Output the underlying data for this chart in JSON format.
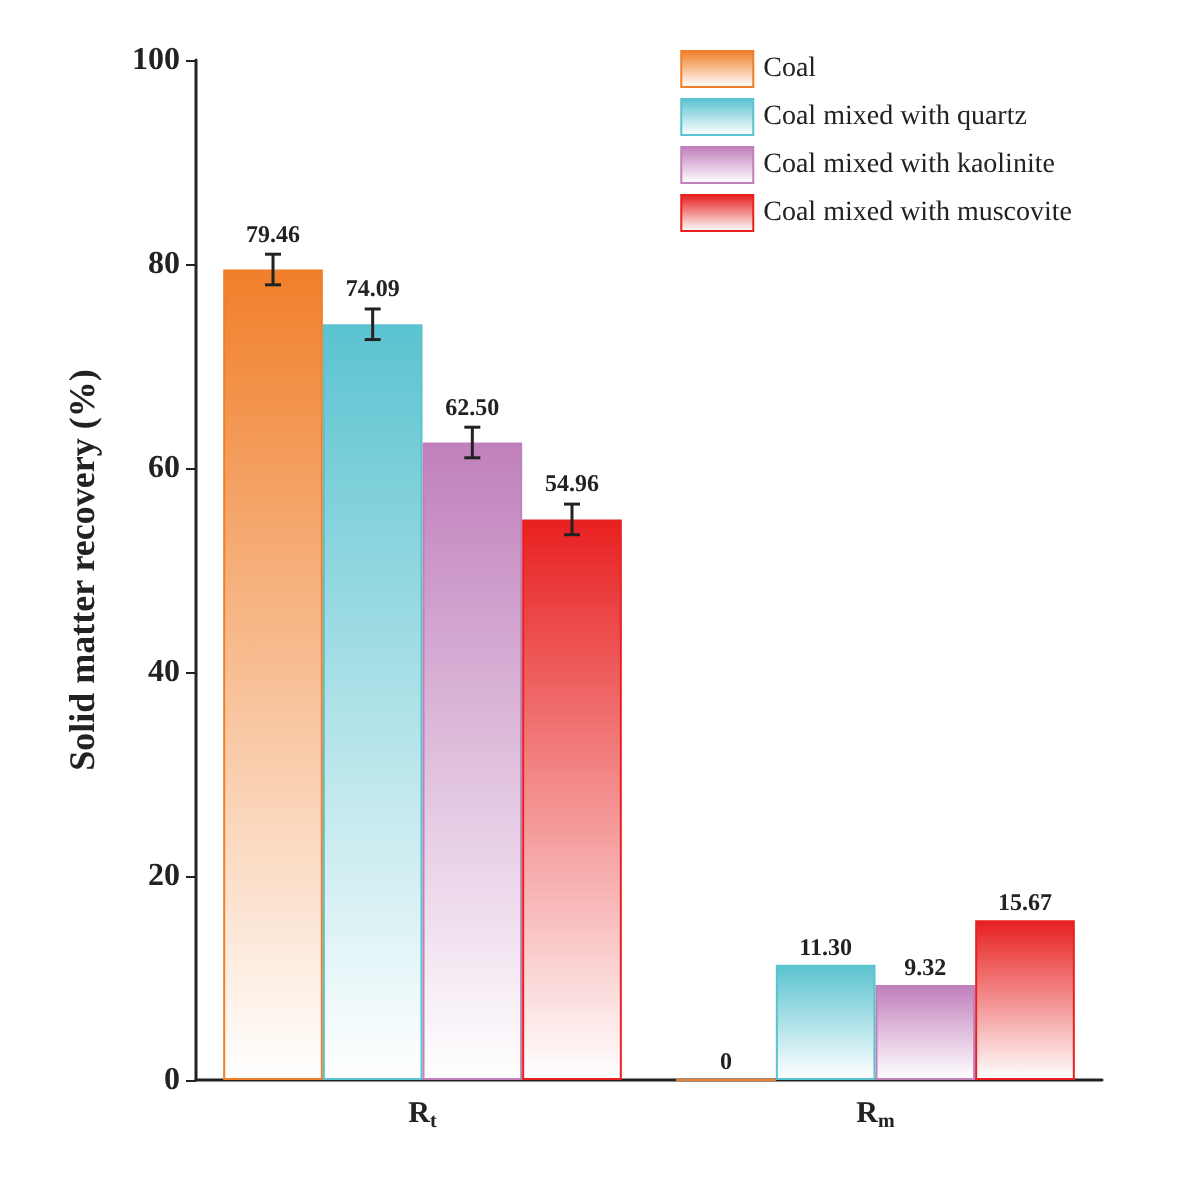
{
  "chart_data": {
    "type": "bar",
    "ylabel": "Solid matter recovery (%)",
    "categories": [
      "R$_{t}$",
      "R$_{m}$"
    ],
    "series": [
      {
        "name": "Coal",
        "color": "#f07f2a",
        "values": [
          79.46,
          0
        ],
        "errors": [
          1.5,
          null
        ],
        "value_labels": [
          "79.46",
          "0"
        ]
      },
      {
        "name": "Coal mixed with quartz",
        "color": "#5bc3d0",
        "values": [
          74.09,
          11.3
        ],
        "errors": [
          1.5,
          null
        ],
        "value_labels": [
          "74.09",
          "11.30"
        ]
      },
      {
        "name": "Coal mixed with kaolinite",
        "color": "#c080bc",
        "values": [
          62.5,
          9.32
        ],
        "errors": [
          1.5,
          null
        ],
        "value_labels": [
          "62.50",
          "9.32"
        ]
      },
      {
        "name": "Coal mixed with muscovite",
        "color": "#e82020",
        "values": [
          54.96,
          15.67
        ],
        "errors": [
          1.5,
          null
        ],
        "value_labels": [
          "54.96",
          "15.67"
        ]
      }
    ],
    "ylim": [
      0,
      100
    ],
    "yticks": [
      0,
      20,
      40,
      60,
      80,
      100
    ],
    "grid": false,
    "legend": "top right"
  }
}
